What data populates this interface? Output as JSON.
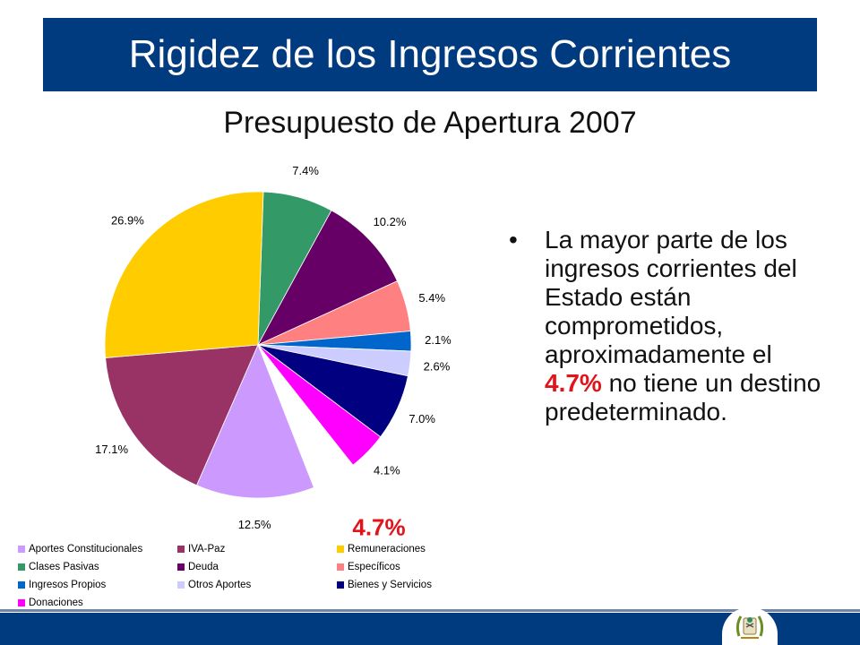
{
  "slide": {
    "title": "Rigidez de los Ingresos Corrientes",
    "subtitle": "Presupuesto de Apertura 2007"
  },
  "bullet": {
    "before": "La mayor parte de los ingresos corrientes del Estado están comprometidos, aproximadamente el ",
    "highlight": "4.7%",
    "after": " no tiene un destino predeterminado."
  },
  "chart_data": {
    "type": "pie",
    "slices": [
      {
        "name": "Clases Pasivas",
        "value": 7.4,
        "label": "7.4%",
        "color": "#339966"
      },
      {
        "name": "Deuda",
        "value": 10.2,
        "label": "10.2%",
        "color": "#660066"
      },
      {
        "name": "Específicos",
        "value": 5.4,
        "label": "5.4%",
        "color": "#ff8080"
      },
      {
        "name": "Ingresos Propios",
        "value": 2.1,
        "label": "2.1%",
        "color": "#0066cc"
      },
      {
        "name": "Otros Aportes",
        "value": 2.6,
        "label": "2.6%",
        "color": "#ccccff"
      },
      {
        "name": "Bienes y Servicios",
        "value": 7.0,
        "label": "7.0%",
        "color": "#000080"
      },
      {
        "name": "Donaciones",
        "value": 4.1,
        "label": "4.1%",
        "color": "#ff00ff"
      },
      {
        "name": "Sin destino",
        "value": 4.7,
        "label": "",
        "color": "#ffffff"
      },
      {
        "name": "Aportes Constitucionales",
        "value": 12.5,
        "label": "12.5%",
        "color": "#cc99ff"
      },
      {
        "name": "IVA-Paz",
        "value": 17.1,
        "label": "17.1%",
        "color": "#993366"
      },
      {
        "name": "Remuneraciones",
        "value": 26.9,
        "label": "26.9%",
        "color": "#ffcc00"
      }
    ],
    "callout": {
      "label": "4.7%",
      "color": "#e2141b"
    },
    "legend": [
      {
        "name": "Aportes Constitucionales",
        "color": "#cc99ff"
      },
      {
        "name": "IVA-Paz",
        "color": "#993366"
      },
      {
        "name": "Remuneraciones",
        "color": "#ffcc00"
      },
      {
        "name": "Clases Pasivas",
        "color": "#339966"
      },
      {
        "name": "Deuda",
        "color": "#660066"
      },
      {
        "name": "Específicos",
        "color": "#ff8080"
      },
      {
        "name": "Ingresos Propios",
        "color": "#0066cc"
      },
      {
        "name": "Otros Aportes",
        "color": "#ccccff"
      },
      {
        "name": "Bienes y Servicios",
        "color": "#000080"
      },
      {
        "name": "Donaciones",
        "color": "#ff00ff"
      }
    ],
    "legend_position": "bottom-left"
  },
  "colors": {
    "title_bar": "#003a7f",
    "highlight": "#e2141b"
  },
  "icons": {
    "emblem": "guatemala-coat-of-arms-icon"
  }
}
